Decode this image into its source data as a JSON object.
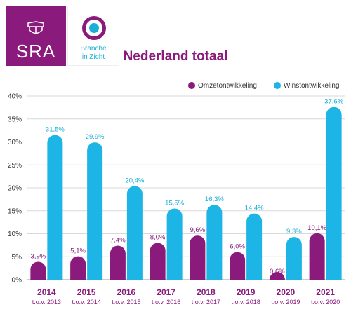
{
  "brand": {
    "sra": "SRA",
    "bic_line1": "Branche",
    "bic_line2": "in Zicht"
  },
  "colors": {
    "omzet": "#8a1a7b",
    "winst": "#1cb5e6",
    "brand": "#8a1a7b",
    "accent": "#1aaed8"
  },
  "chart_data": {
    "type": "bar",
    "title": "Nederland totaal",
    "categories": [
      "2014",
      "2015",
      "2016",
      "2017",
      "2018",
      "2019",
      "2020",
      "2021"
    ],
    "sublabels": [
      "t.o.v. 2013",
      "t.o.v. 2014",
      "t.o.v. 2015",
      "t.o.v. 2016",
      "t.o.v. 2017",
      "t.o.v. 2018",
      "t.o.v. 2019",
      "t.o.v. 2020"
    ],
    "series": [
      {
        "name": "Omzetontwikkeling",
        "values": [
          3.9,
          5.1,
          7.4,
          8.0,
          9.6,
          6.0,
          0.6,
          10.1
        ],
        "labels": [
          "3,9%",
          "5,1%",
          "7,4%",
          "8,0%",
          "9,6%",
          "6,0%",
          "0,6%",
          "10,1%"
        ]
      },
      {
        "name": "Winstontwikkeling",
        "values": [
          31.5,
          29.9,
          20.4,
          15.5,
          16.3,
          14.4,
          9.3,
          37.6
        ],
        "labels": [
          "31,5%",
          "29,9%",
          "20,4%",
          "15,5%",
          "16,3%",
          "14,4%",
          "9,3%",
          "37,6%"
        ]
      }
    ],
    "yticks": [
      "0%",
      "5%",
      "10%",
      "15%",
      "20%",
      "25%",
      "30%",
      "35%",
      "40%"
    ],
    "ylim": [
      0,
      40
    ],
    "grid": true,
    "legend": "top-right"
  }
}
